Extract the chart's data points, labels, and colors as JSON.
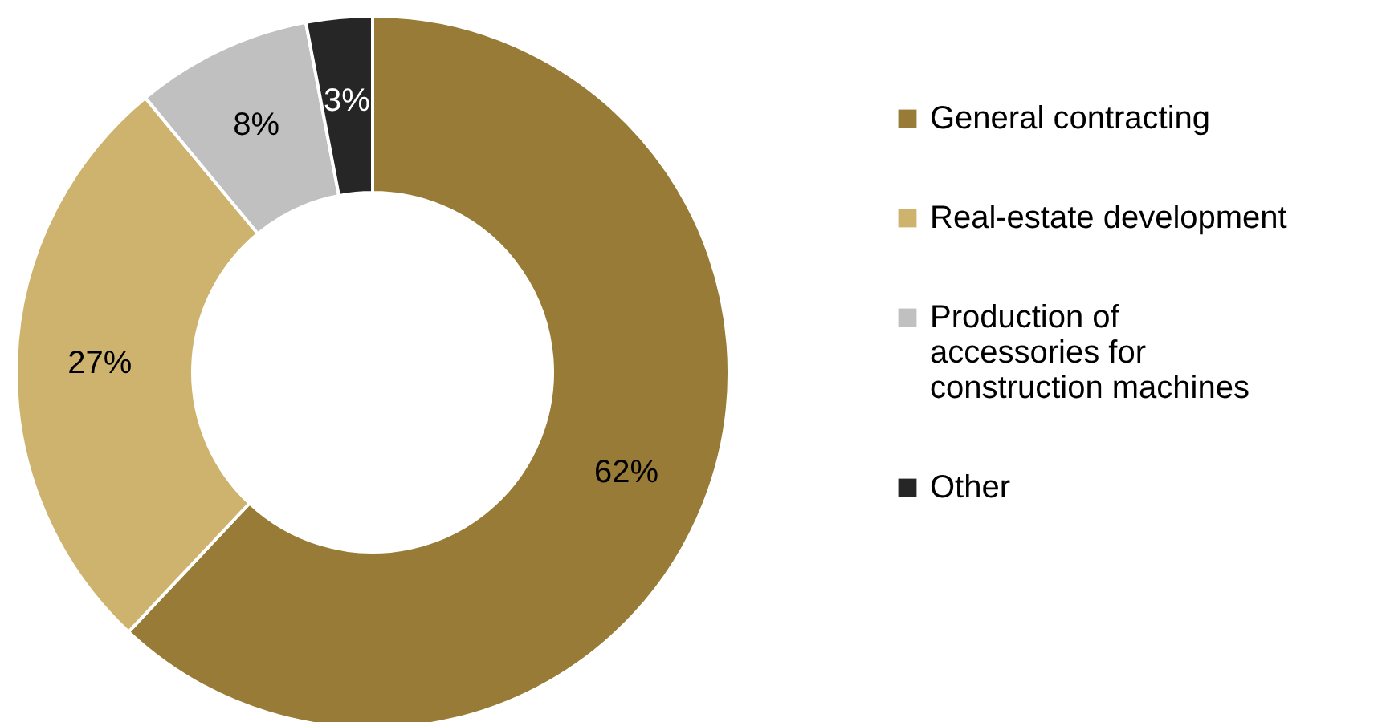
{
  "chart_data": {
    "type": "donut",
    "categories": [
      "General contracting",
      "Real-estate development",
      "Production of accessories for construction machines",
      "Other"
    ],
    "values": [
      62,
      27,
      8,
      3
    ],
    "colors": [
      "#977b36",
      "#cdb36e",
      "#c0c0c0",
      "#262626"
    ],
    "value_labels": [
      "62%",
      "27%",
      "8%",
      "3%"
    ],
    "legend": "right"
  }
}
